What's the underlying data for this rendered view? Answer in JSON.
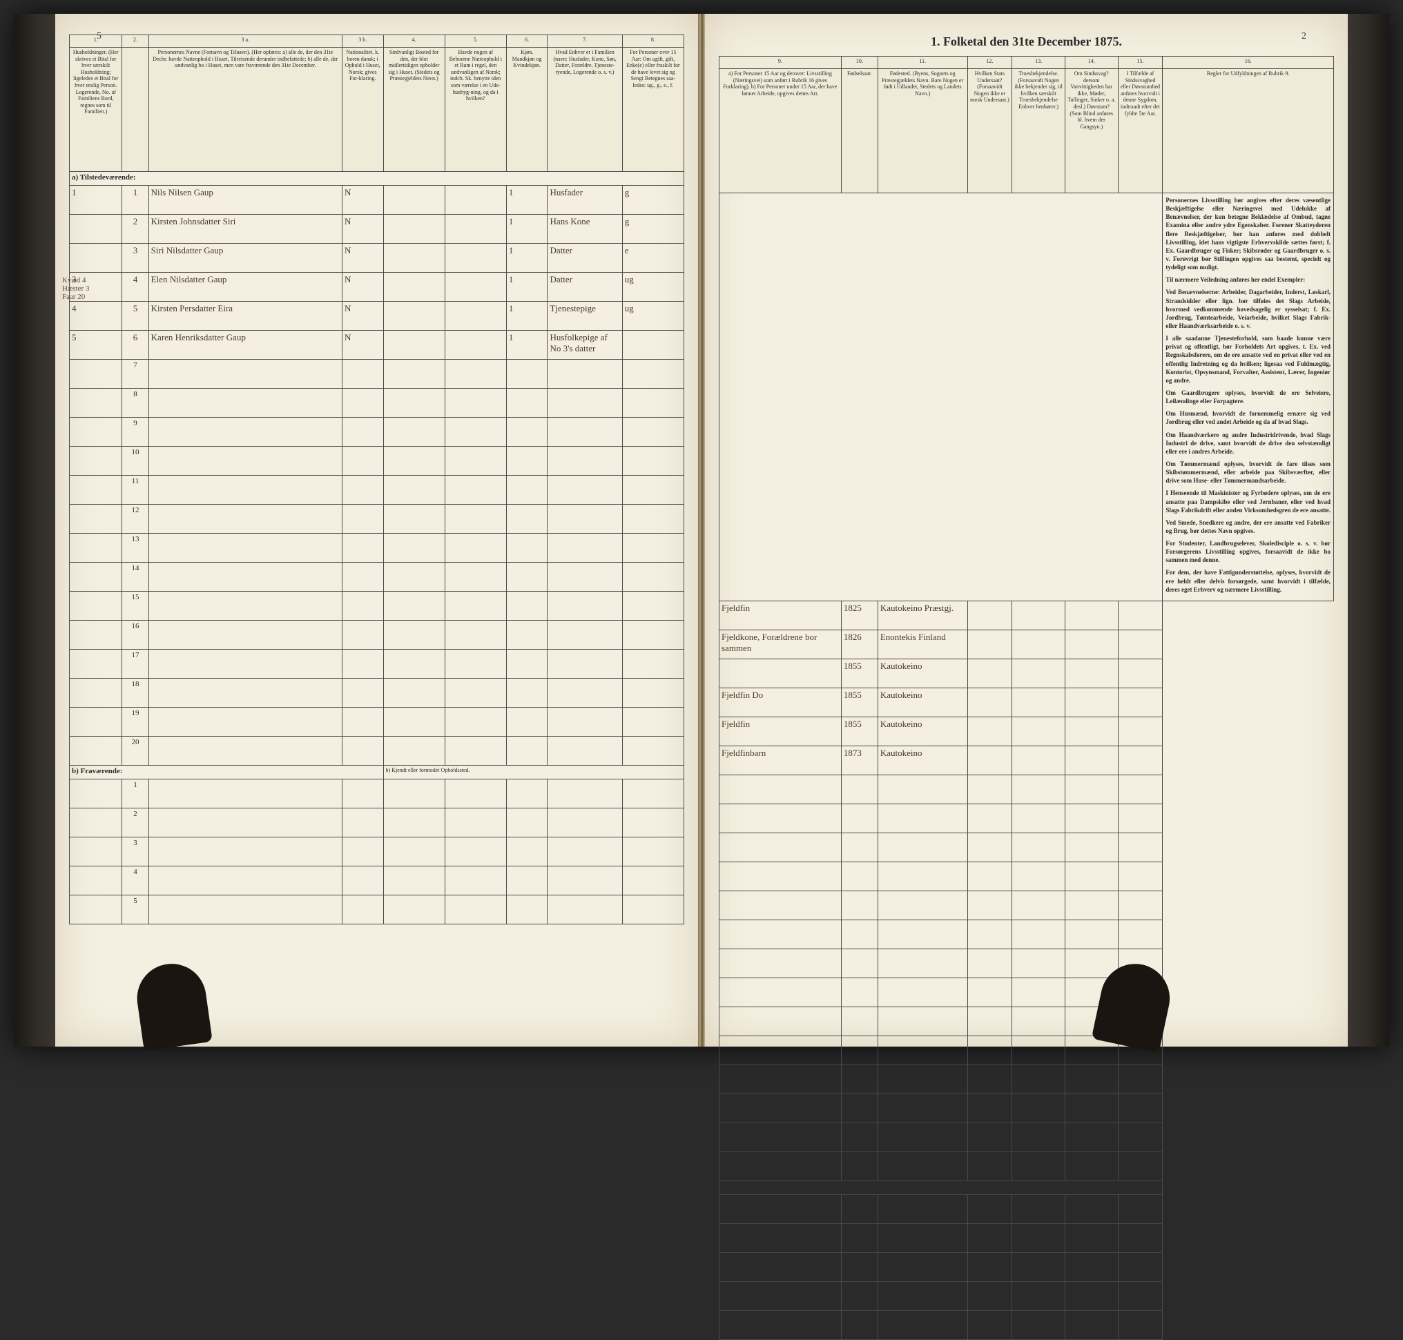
{
  "title": "1. Folketal den 31te December 1875.",
  "page_number_left": "5",
  "page_number_right": "2",
  "left_columns": {
    "nums": [
      "1.",
      "2.",
      "3 a.",
      "3 b.",
      "4.",
      "5.",
      "6.",
      "7.",
      "8."
    ],
    "heads": [
      "Husholdninger. (Her skrives et Bital for hver særskilt Husholdning; ligeledes et Bital for hver enslig Person. Logerende, No. af Familiens Bord, regnes som til Familien.)",
      "Personernes Navne (Fornavn og Tilnavn). (Her opføres: a) alle de, der den 31te Decbr. havde Natteophold i Huset, Tilreisende derunder indbefattede; b) alle de, der sædvanlig bo i Huset, men vare fraværende den 31te December.",
      "Nationalitet. k. boren dansk; i Ophold i Huset, Norsk; gives For-klaring.",
      "Sædvanligt Bosted for den, der blot midlertidigen opholder sig i Huset. (Stedets og Præstegjeldets Navn.)",
      "Havde nogen af Beboerne Natteophold i et Rum i regel, den sædvanligen af Norsk; indch. Sk. benytte iden som værelse i en Ude-husbyg-ning, og da i hvilken?",
      "Kjøn. Mandkjøn og Kvindekjøn.",
      "Hvad Enhver er i Familien (navn: Husfader, Kone, Søn, Datter, Forældre, Tjeneste-tyende, Logerende o. s. v.)",
      "For Personer over 15 Aar: Om ugift, gift, Enke(e) eller fraskilt for de have levet sig og Sengi Betegnes saa-ledes: ug., g., e., f."
    ]
  },
  "right_columns": {
    "nums": [
      "9.",
      "10.",
      "11.",
      "12.",
      "13.",
      "14.",
      "15.",
      "16."
    ],
    "heads": [
      "a) For Personer 15 Aar og derover: Livsstilling (Næringsvei) som anført i Rubrik 16 gives Forklaring). b) For Personer under 15 Aar, der have lønnet Arbeide, opgives dettes Art.",
      "Fødselsaar.",
      "Fødested. (Byens, Sognets og Præstegjældets Navn. Bare Nogen er født i Udlandet, Stedets og Landets Navn.)",
      "Hvilken Stats Undersaat? (Forsaavidt Nogen ikke er norsk Undersaat.)",
      "Troesbekjendelse. (Forsaavidt Nogen ikke bekjender sig, til hvilken særskilt Troesbekjendelse Enhver henhører.)",
      "Om Sindssvag? dersom Vanvittigheden har ikke, Møder, Tullinger, Sinker o. a. desl.) Døvstum? (Som Blind anføres bl. hvem der Gangsyn.)",
      "I Tilfælde af Sindssvaghed eller Døvstumhed anføres hvorvidt i denne Sygdom, indtraadt efter det fyldte 5te Aar.",
      "Regler for Udfyldningen af Rubrik 9."
    ]
  },
  "section_a": "a) Tilstedeværende:",
  "section_b": "b) Fraværende:",
  "fravar_note": "b) Kjendt eller formodet Opholdssted.",
  "margin_note": "Kvæd 4 Hæster 3 Faar 20",
  "rows": [
    {
      "hh": "1",
      "n": "1",
      "name": "Nils Nilsen Gaup",
      "nat": "N",
      "fam": "Husfader",
      "civ": "g",
      "occ": "Fjeldfin",
      "year": "1825",
      "place": "Kautokeino Præstgj."
    },
    {
      "hh": "",
      "n": "2",
      "name": "Kirsten Johnsdatter Siri",
      "nat": "N",
      "fam": "Hans Kone",
      "civ": "g",
      "occ": "Fjeldkone, Forældrene bor sammen",
      "year": "1826",
      "place": "Enontekis Finland"
    },
    {
      "hh": "",
      "n": "3",
      "name": "Siri Nilsdatter Gaup",
      "nat": "N",
      "fam": "Datter",
      "civ": "e",
      "occ": "",
      "year": "1855",
      "place": "Kautokeino"
    },
    {
      "hh": "3",
      "n": "4",
      "name": "Elen Nilsdatter Gaup",
      "nat": "N",
      "fam": "Datter",
      "civ": "ug",
      "occ": "Fjeldfin Do",
      "year": "1855",
      "place": "Kautokeino"
    },
    {
      "hh": "4",
      "n": "5",
      "name": "Kirsten Persdatter Eira",
      "nat": "N",
      "fam": "Tjenestepige",
      "civ": "ug",
      "occ": "Fjeldfin",
      "year": "1855",
      "place": "Kautokeino"
    },
    {
      "hh": "5",
      "n": "6",
      "name": "Karen Henriksdatter Gaup",
      "nat": "N",
      "fam": "Husfolkepige af No 3's datter",
      "civ": "",
      "occ": "Fjeldfinbarn",
      "year": "1873",
      "place": "Kautokeino"
    }
  ],
  "empty_rows": [
    "7",
    "8",
    "9",
    "10",
    "11",
    "12",
    "13",
    "14",
    "15",
    "16",
    "17",
    "18",
    "19",
    "20"
  ],
  "frav_rows": [
    "1",
    "2",
    "3",
    "4",
    "5"
  ],
  "rules": [
    "Personernes Livsstilling bør angives efter deres væsentlige Beskjæftigelse eller Næringsvei med Udelukke af Benævnelser, der kun betegne Beklædelse af Ombud, tagne Examina eller andre ydre Egenskaber. Forener Skatteyderen flere Beskjæftigelser, bør han anføres med dobbelt Livsstilling, idet hans vigtigste Erhvervskilde sættes først; f. Ex. Gaardbruger og Fisker; Skibsrøder og Gaardbruger o. s. v. Forøvrigt bør Stillingen opgives saa bestemt, specielt og tydeligt som muligt.",
    "Til nærmere Veiledning anføres her endel Exempler:",
    "Ved Benævnelserne: Arbeider, Dagarbeider, Inderst, Løskarl, Strandsidder eller lign. bør tilføies det Slags Arbeide, hvormed vedkommende hovedsagelig er sysselsat; f. Ex. Jordbrug, Tømtearbeide, Veiarbeide, hvilket Slags Fabrik- eller Haandværksarbeide o. s. v.",
    "I alle saadanne Tjenesteforhold, som baade kunne være privat og offentligt, bør Forholdets Art opgives, t. Ex. ved Regnskabsførere, om de ere ansatte ved en privat eller ved en offentlig Indretning og da hvilken; ligesaa ved Fuldmægtig, Kontorist, Opsynsmand, Forvalter, Assistent, Lærer, Ingeniør og andre.",
    "Om Gaardbrugere oplyses, hvorvidt de ere Selveiere, Leilændinge eller Forpagtere.",
    "Om Husmænd, hvorvidt de fornemmelig ernære sig ved Jordbrug eller ved andet Arbeide og da af hvad Slags.",
    "Om Haandværkere og andre Industridrivende, hvad Slags Industri de drive, samt hvorvidt de drive den selvstændigt eller ere i andres Arbeide.",
    "Om Tømmermænd oplyses, hvorvidt de fare tilsøs som Skibstømmermænd, eller arbeide paa Skibsværfter, eller drive som Huse- eller Tømmermandsarbeide.",
    "I Henseende til Maskinister og Fyrbødere oplyses, om de ere ansatte paa Dampskibe eller ved Jernbaner, eller ved hvad Slags Fabrikdrift eller anden Virksomhedsgren de ere ansatte.",
    "Ved Smede, Snedkere og andre, der ere ansatte ved Fabriker og Brug, bør dettes Navn opgives.",
    "For Studenter, Landbrugselever, Skoledisciple o. s. v. bør Forsørgerens Livsstilling opgives, forsaavidt de ikke bo sammen med denne.",
    "For dem, der have Fattigunderstøttelse, oplyses, hvorvidt de ere heldt eller delvis forsørgede, samt hvorvidt i tilfælde, deres eget Erhverv og nærmere Livsstilling."
  ]
}
